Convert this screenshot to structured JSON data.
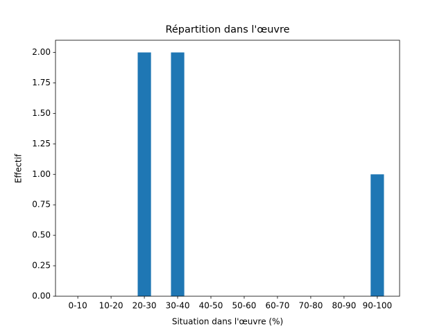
{
  "chart_data": {
    "type": "bar",
    "title": "Répartition dans l'œuvre",
    "x_label": "Situation dans l'œuvre (%)",
    "y_label": "Effectif",
    "categories": [
      "0-10",
      "10-20",
      "20-30",
      "30-40",
      "40-50",
      "50-60",
      "60-70",
      "70-80",
      "80-90",
      "90-100"
    ],
    "values": [
      0,
      0,
      2,
      2,
      0,
      0,
      0,
      0,
      0,
      1
    ],
    "color": "#1f77b4",
    "ylim": [
      0,
      2.1
    ],
    "yticks": [
      {
        "value": 0,
        "label": "0.00"
      },
      {
        "value": 0.25,
        "label": "0.25"
      },
      {
        "value": 0.5,
        "label": "0.50"
      },
      {
        "value": 0.75,
        "label": "0.75"
      },
      {
        "value": 1,
        "label": "1.00"
      },
      {
        "value": 1.25,
        "label": "1.25"
      },
      {
        "value": 1.5,
        "label": "1.50"
      },
      {
        "value": 1.75,
        "label": "1.75"
      },
      {
        "value": 2,
        "label": "2.00"
      }
    ],
    "grid": false
  }
}
